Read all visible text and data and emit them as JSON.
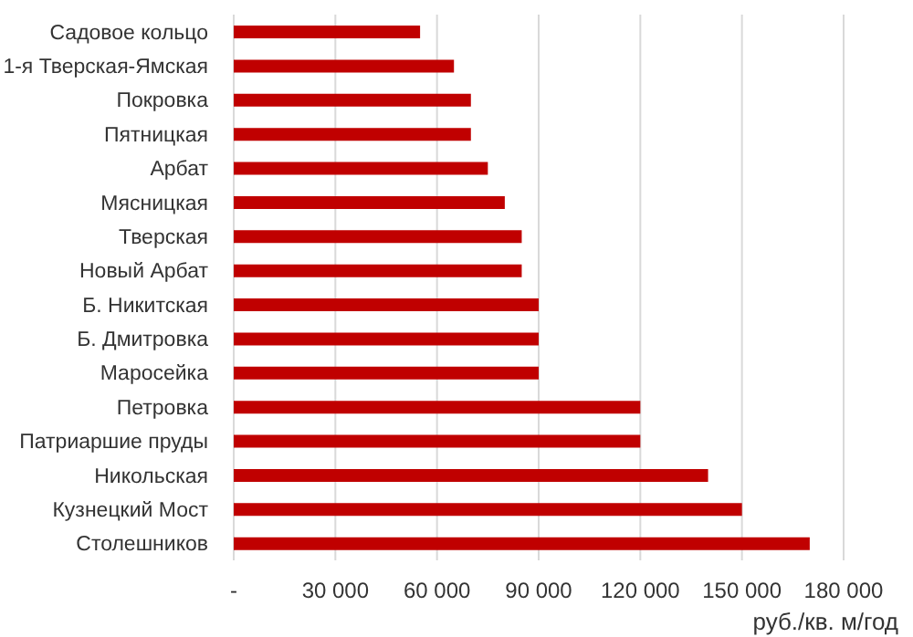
{
  "chart_data": {
    "type": "bar",
    "orientation": "horizontal",
    "xlabel": "руб./кв. м/год",
    "categories": [
      "Садовое кольцо",
      "1-я Тверская-Ямская",
      "Покровка",
      "Пятницкая",
      "Арбат",
      "Мясницкая",
      "Тверская",
      "Новый Арбат",
      "Б. Никитская",
      "Б. Дмитровка",
      "Маросейка",
      "Петровка",
      "Патриаршие  пруды",
      "Никольская",
      "Кузнецкий Мост",
      "Столешников"
    ],
    "values": [
      55000,
      65000,
      70000,
      70000,
      75000,
      80000,
      85000,
      85000,
      90000,
      90000,
      90000,
      120000,
      120000,
      140000,
      150000,
      170000
    ],
    "color": "#c00000",
    "xlim": [
      0,
      180000
    ],
    "xticks": [
      {
        "value": 0,
        "label": "-"
      },
      {
        "value": 30000,
        "label": "30 000"
      },
      {
        "value": 60000,
        "label": "60 000"
      },
      {
        "value": 90000,
        "label": "90 000"
      },
      {
        "value": 120000,
        "label": "120 000"
      },
      {
        "value": 150000,
        "label": "150 000"
      },
      {
        "value": 180000,
        "label": "180 000"
      }
    ],
    "grid": "x"
  }
}
